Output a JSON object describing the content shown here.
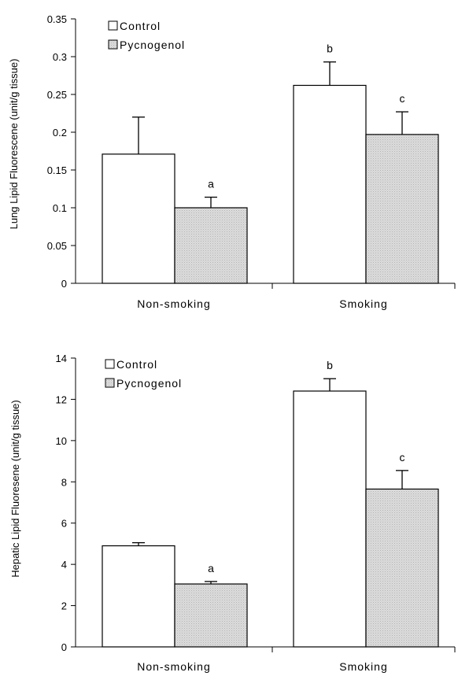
{
  "chart_data": [
    {
      "type": "bar",
      "categories": [
        "Non-smoking",
        "Smoking"
      ],
      "ylabel": "Lung Lipid Fluorescene (unit/g tissue)",
      "xlabel": "",
      "ylim": [
        0,
        0.35
      ],
      "yticks": [
        "0",
        "0.05",
        "0.1",
        "0.15",
        "0.2",
        "0.25",
        "0.3",
        "0.35"
      ],
      "grid": false,
      "legend_position": "top-left",
      "series": [
        {
          "name": "Control",
          "values": [
            0.171,
            0.262
          ],
          "errors": [
            0.049,
            0.031
          ],
          "annotations": [
            "",
            "b"
          ],
          "color": "#ffffff"
        },
        {
          "name": "Pycnogenol",
          "values": [
            0.1,
            0.197
          ],
          "errors": [
            0.014,
            0.03
          ],
          "annotations": [
            "a",
            "c"
          ],
          "color": "#d9d9d9"
        }
      ]
    },
    {
      "type": "bar",
      "categories": [
        "Non-smoking",
        "Smoking"
      ],
      "ylabel": "Hepatic Lipid Fluoresene (unit/g tissue)",
      "xlabel": "",
      "ylim": [
        0,
        14
      ],
      "yticks": [
        "0",
        "2",
        "4",
        "6",
        "8",
        "10",
        "12",
        "14"
      ],
      "grid": false,
      "legend_position": "top-left",
      "series": [
        {
          "name": "Control",
          "values": [
            4.9,
            12.4
          ],
          "errors": [
            0.15,
            0.6
          ],
          "annotations": [
            "",
            "b"
          ],
          "color": "#ffffff"
        },
        {
          "name": "Pycnogenol",
          "values": [
            3.05,
            7.65
          ],
          "errors": [
            0.12,
            0.9
          ],
          "annotations": [
            "a",
            "c"
          ],
          "color": "#d9d9d9"
        }
      ]
    }
  ]
}
